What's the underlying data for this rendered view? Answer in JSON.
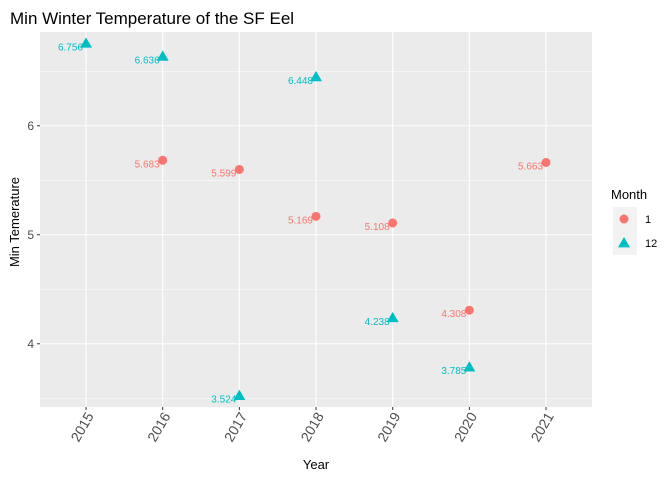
{
  "chart_data": {
    "type": "scatter",
    "title": "Min Winter Temperature of the SF Eel",
    "xlabel": "Year",
    "ylabel": "Min Temerature",
    "categories": [
      "2015",
      "2016",
      "2017",
      "2018",
      "2019",
      "2020",
      "2021"
    ],
    "ylim": [
      3.42,
      6.86
    ],
    "yticks": [
      4,
      5,
      6
    ],
    "grid": true,
    "legend": {
      "title": "Month",
      "placement": "right"
    },
    "series": [
      {
        "name": "1",
        "color": "#F8766D",
        "shape": "circle",
        "points": [
          {
            "x": "2016",
            "y": 5.683,
            "label": "5.683"
          },
          {
            "x": "2017",
            "y": 5.599,
            "label": "5.599"
          },
          {
            "x": "2018",
            "y": 5.169,
            "label": "5.169"
          },
          {
            "x": "2019",
            "y": 5.108,
            "label": "5.108"
          },
          {
            "x": "2020",
            "y": 4.308,
            "label": "4.308"
          },
          {
            "x": "2021",
            "y": 5.663,
            "label": "5.663"
          }
        ]
      },
      {
        "name": "12",
        "color": "#00BFC4",
        "shape": "triangle",
        "points": [
          {
            "x": "2015",
            "y": 6.756,
            "label": "6.756"
          },
          {
            "x": "2016",
            "y": 6.636,
            "label": "6.636"
          },
          {
            "x": "2017",
            "y": 3.524,
            "label": "3.524"
          },
          {
            "x": "2018",
            "y": 6.448,
            "label": "6.448"
          },
          {
            "x": "2019",
            "y": 4.238,
            "label": "4.238"
          },
          {
            "x": "2020",
            "y": 3.785,
            "label": "3.785"
          }
        ]
      }
    ]
  }
}
